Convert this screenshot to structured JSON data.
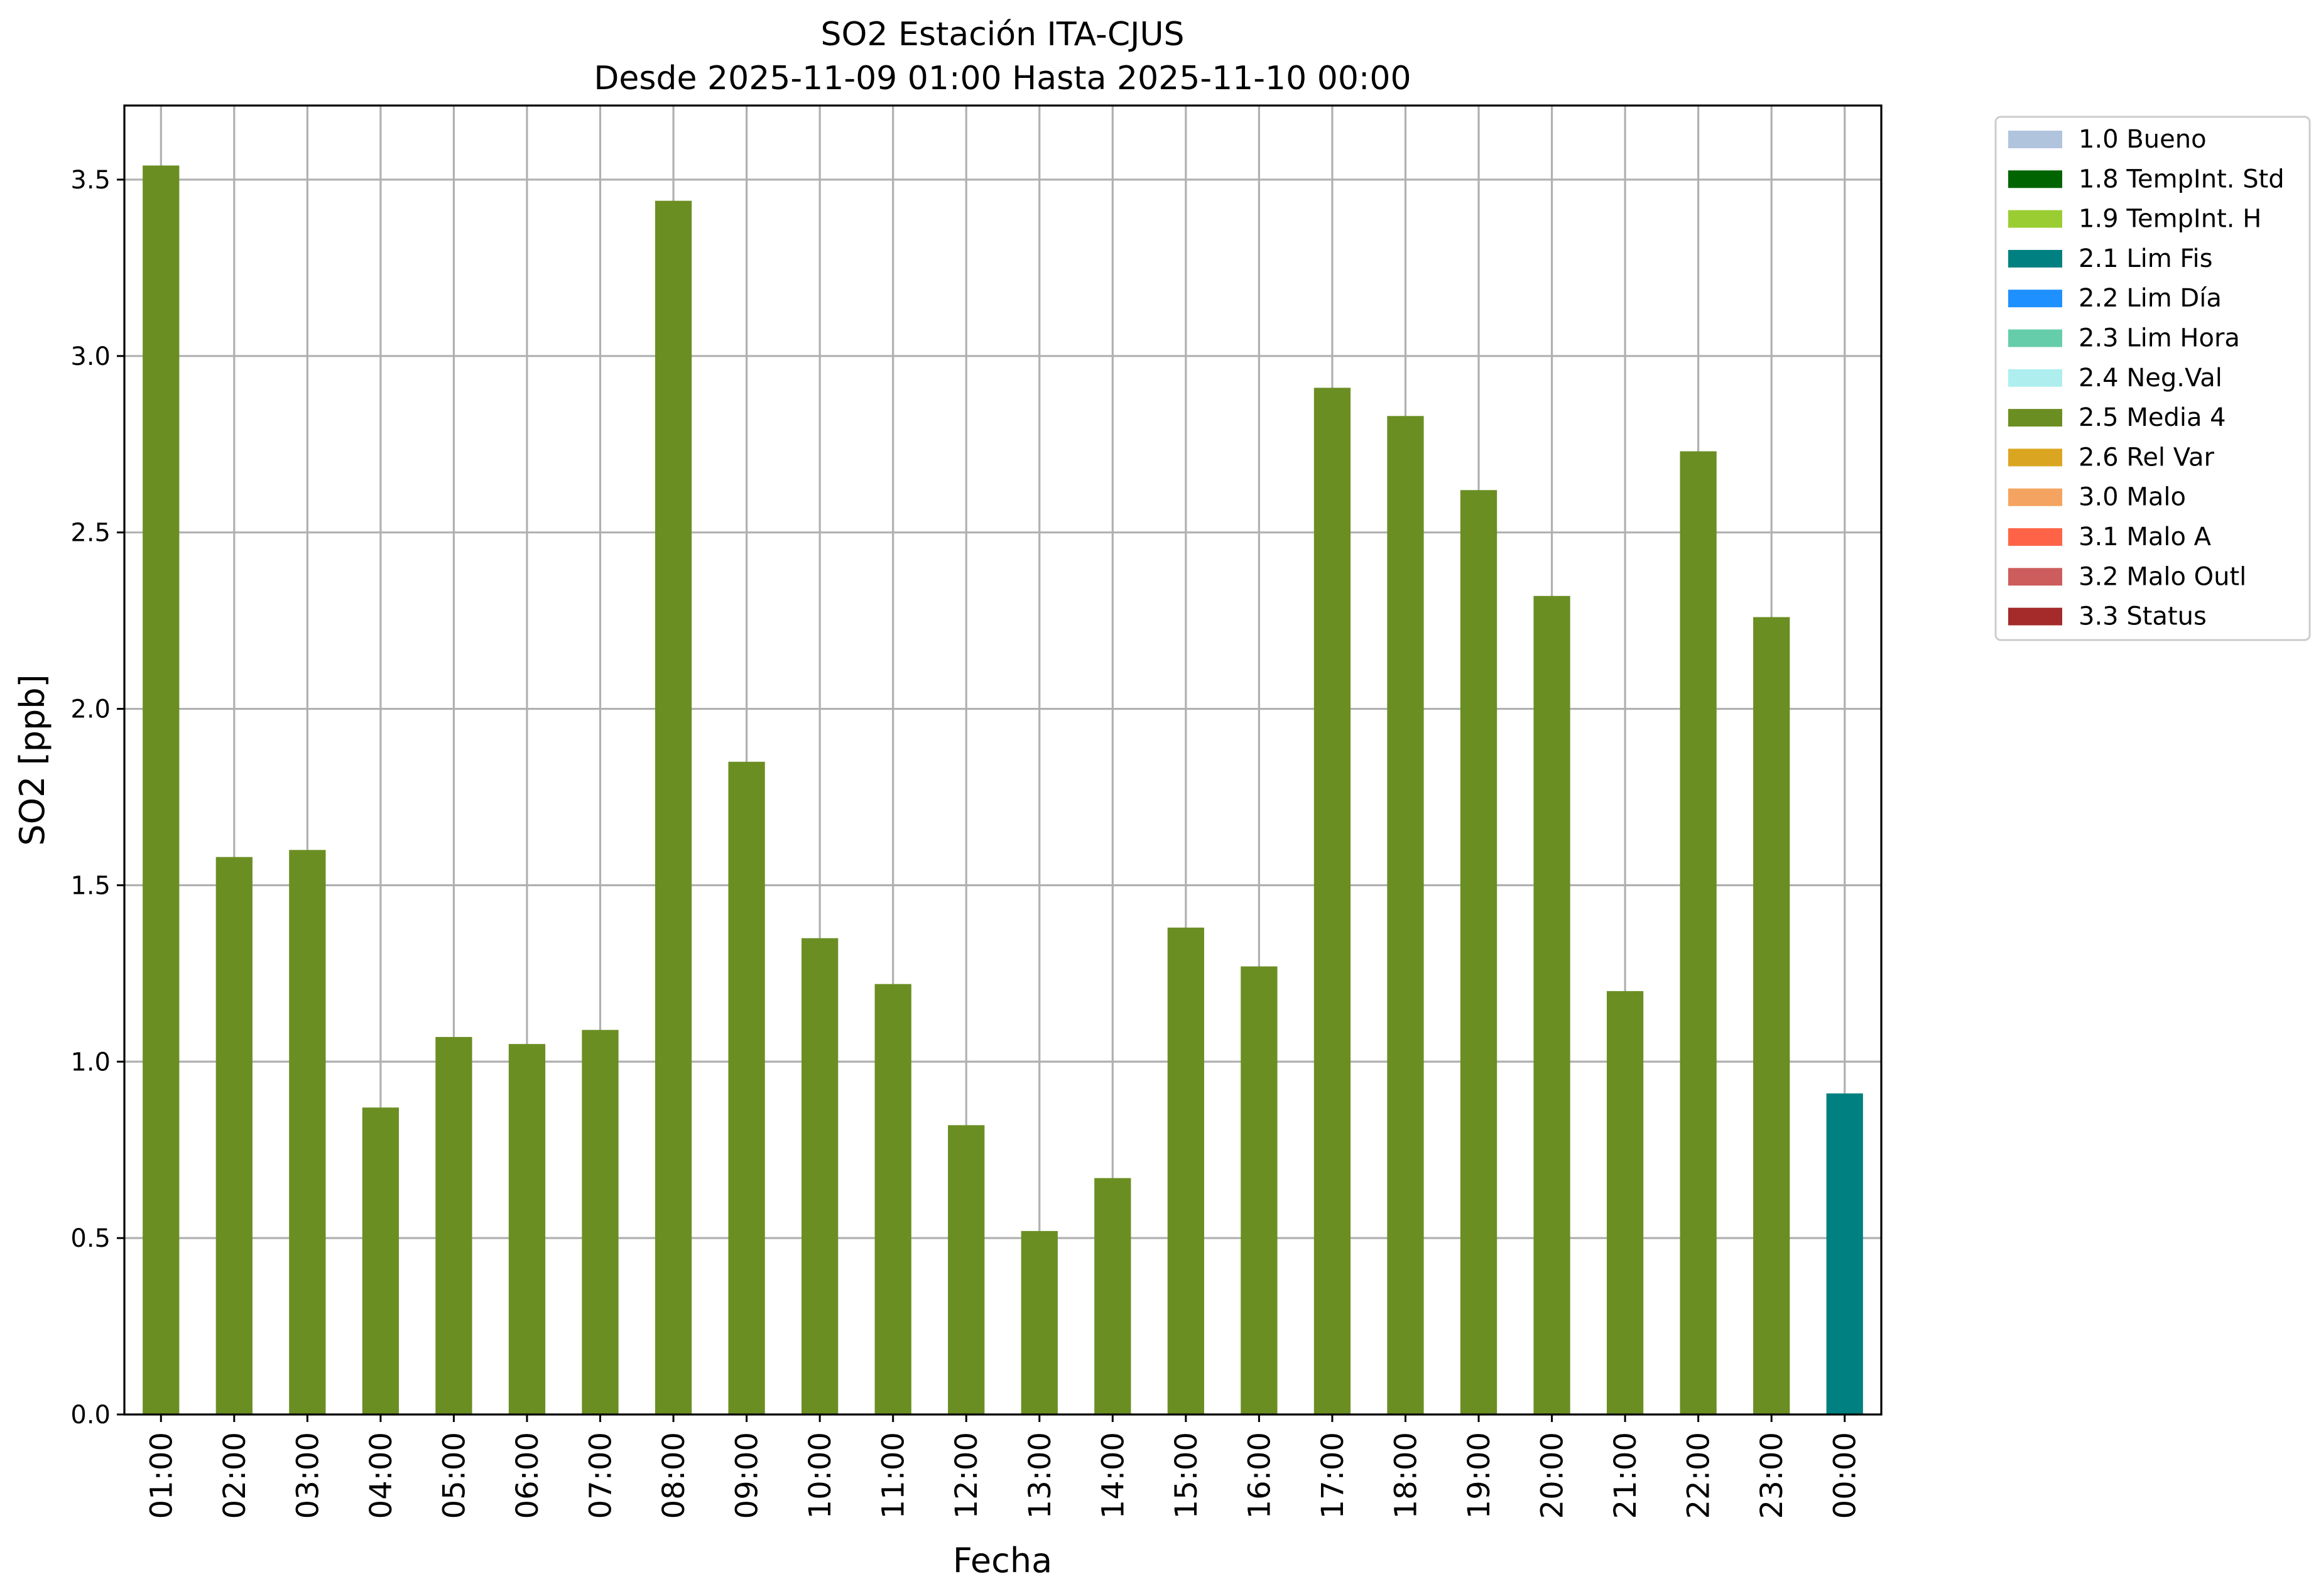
{
  "chart_data": {
    "type": "bar",
    "title": "SO2 Estación ITA-CJUS",
    "subtitle": "Desde 2025-11-09 01:00 Hasta 2025-11-10 00:00",
    "xlabel": "Fecha",
    "ylabel": "SO2 [ppb]",
    "ylim": [
      0,
      3.71
    ],
    "yticks": [
      "0.0",
      "0.5",
      "1.0",
      "1.5",
      "2.0",
      "2.5",
      "3.0",
      "3.5"
    ],
    "grid": true,
    "legend_position": "outside top-right",
    "categories": [
      "01:00",
      "02:00",
      "03:00",
      "04:00",
      "05:00",
      "06:00",
      "07:00",
      "08:00",
      "09:00",
      "10:00",
      "11:00",
      "12:00",
      "13:00",
      "14:00",
      "15:00",
      "16:00",
      "17:00",
      "18:00",
      "19:00",
      "20:00",
      "21:00",
      "22:00",
      "23:00",
      "00:00"
    ],
    "values": [
      3.54,
      1.58,
      1.6,
      0.87,
      1.07,
      1.05,
      1.09,
      3.44,
      1.85,
      1.35,
      1.22,
      0.82,
      0.52,
      0.67,
      1.38,
      1.27,
      2.91,
      2.83,
      2.62,
      2.32,
      1.2,
      2.73,
      2.26,
      0.91
    ],
    "bar_flags": [
      "2.5 Media 4",
      "2.5 Media 4",
      "2.5 Media 4",
      "2.5 Media 4",
      "2.5 Media 4",
      "2.5 Media 4",
      "2.5 Media 4",
      "2.5 Media 4",
      "2.5 Media 4",
      "2.5 Media 4",
      "2.5 Media 4",
      "2.5 Media 4",
      "2.5 Media 4",
      "2.5 Media 4",
      "2.5 Media 4",
      "2.5 Media 4",
      "2.5 Media 4",
      "2.5 Media 4",
      "2.5 Media 4",
      "2.5 Media 4",
      "2.5 Media 4",
      "2.5 Media 4",
      "2.5 Media 4",
      "2.1 Lim Fis"
    ],
    "legend": [
      {
        "label": "1.0 Bueno",
        "color": "#b0c4de"
      },
      {
        "label": "1.8 TempInt. Std",
        "color": "#006400"
      },
      {
        "label": "1.9 TempInt. H",
        "color": "#9acd32"
      },
      {
        "label": "2.1 Lim Fis",
        "color": "#008080"
      },
      {
        "label": "2.2 Lim Día",
        "color": "#1e90ff"
      },
      {
        "label": "2.3 Lim Hora",
        "color": "#66cdaa"
      },
      {
        "label": "2.4 Neg.Val",
        "color": "#afeeee"
      },
      {
        "label": "2.5 Media 4",
        "color": "#6b8e23"
      },
      {
        "label": "2.6 Rel Var",
        "color": "#daa520"
      },
      {
        "label": "3.0 Malo",
        "color": "#f4a460"
      },
      {
        "label": "3.1 Malo A",
        "color": "#ff6347"
      },
      {
        "label": "3.2 Malo Outl",
        "color": "#cd5c5c"
      },
      {
        "label": "3.3 Status",
        "color": "#a52a2a"
      }
    ]
  }
}
